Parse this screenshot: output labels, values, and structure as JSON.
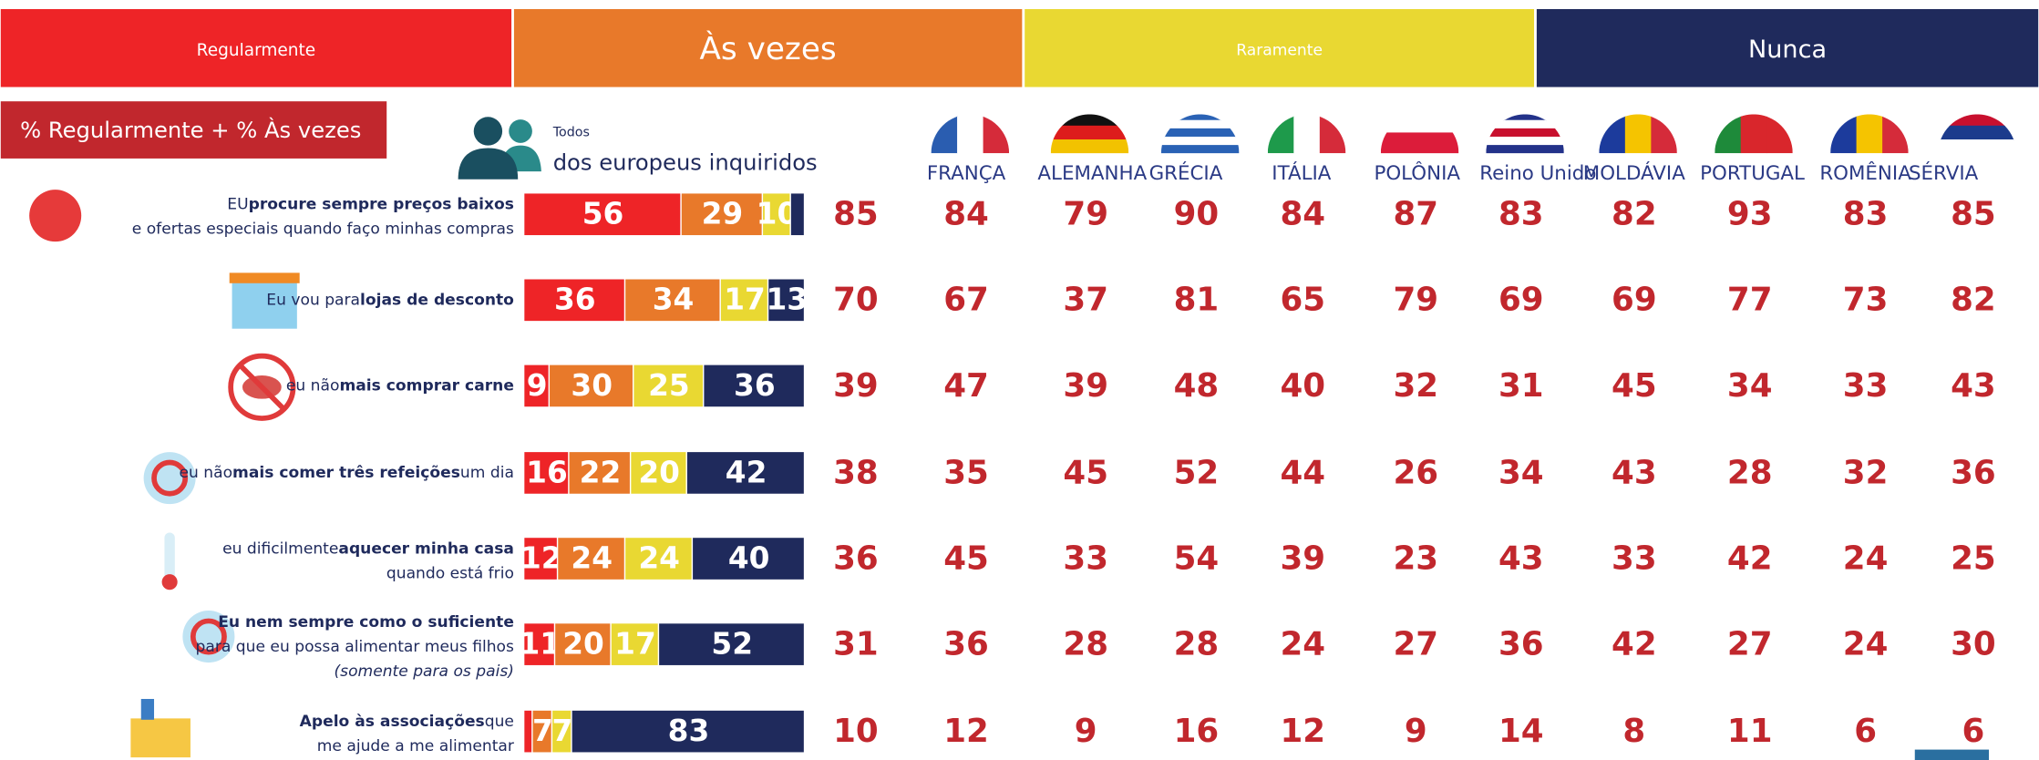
{
  "chart_data": {
    "type": "bar",
    "stacked": true,
    "orientation": "horizontal",
    "xlim": [
      0,
      100
    ],
    "badge": "% Regularmente + % Às vezes",
    "series": [
      {
        "name": "Regularmente",
        "color": "#ee2427",
        "values": [
          56,
          36,
          9,
          16,
          12,
          11,
          3
        ]
      },
      {
        "name": "Às vezes",
        "color": "#e8792a",
        "values": [
          29,
          34,
          30,
          22,
          24,
          20,
          7
        ]
      },
      {
        "name": "Raramente",
        "color": "#e9d832",
        "values": [
          10,
          17,
          25,
          20,
          24,
          17,
          7
        ]
      },
      {
        "name": "Nunca",
        "color": "#1f2a5c",
        "values": [
          5,
          13,
          36,
          42,
          40,
          52,
          83
        ]
      }
    ],
    "categories": [
      {
        "lines": [
          {
            "parts": [
              {
                "text": "EU"
              },
              {
                "text": "procure sempre preços baixos",
                "bold": true
              }
            ]
          },
          {
            "parts": [
              {
                "text": "e ofertas especiais quando faço minhas compras"
              }
            ]
          }
        ]
      },
      {
        "lines": [
          {
            "parts": [
              {
                "text": "Eu vou para"
              },
              {
                "text": "lojas de desconto",
                "bold": true
              }
            ]
          }
        ]
      },
      {
        "lines": [
          {
            "parts": [
              {
                "text": "eu não"
              },
              {
                "text": "mais comprar carne",
                "bold": true
              }
            ]
          }
        ]
      },
      {
        "lines": [
          {
            "parts": [
              {
                "text": "eu não"
              },
              {
                "text": "mais comer três refeições",
                "bold": true
              },
              {
                "text": "um dia"
              }
            ]
          }
        ]
      },
      {
        "lines": [
          {
            "parts": [
              {
                "text": "eu dificilmente"
              },
              {
                "text": "aquecer minha casa",
                "bold": true
              }
            ]
          },
          {
            "parts": [
              {
                "text": "quando está frio"
              }
            ]
          }
        ]
      },
      {
        "lines": [
          {
            "parts": [
              {
                "text": "Eu nem sempre como o suficiente",
                "bold": true
              }
            ]
          },
          {
            "style": "small",
            "parts": [
              {
                "text": "para que eu possa alimentar meus filhos"
              }
            ]
          },
          {
            "style": "note",
            "parts": [
              {
                "text": "(somente para os pais)",
                "italic": true
              }
            ]
          }
        ]
      },
      {
        "lines": [
          {
            "parts": [
              {
                "text": "Apelo às associações",
                "bold": true
              },
              {
                "text": "que"
              }
            ]
          },
          {
            "parts": [
              {
                "text": "me ajude a me alimentar"
              }
            ]
          }
        ]
      }
    ],
    "table": {
      "header_top": "Todos",
      "header": "dos europeus inquiridos",
      "totals": [
        85,
        70,
        39,
        38,
        36,
        31,
        10
      ],
      "countries": [
        {
          "name": "FRANÇA",
          "values": [
            84,
            67,
            47,
            35,
            45,
            36,
            12
          ]
        },
        {
          "name": "ALEMANHA",
          "values": [
            79,
            37,
            39,
            45,
            33,
            28,
            9
          ]
        },
        {
          "name": "GRÉCIA",
          "values": [
            90,
            81,
            48,
            52,
            54,
            28,
            16
          ]
        },
        {
          "name": "ITÁLIA",
          "values": [
            84,
            65,
            40,
            44,
            39,
            24,
            12
          ]
        },
        {
          "name": "POLÔNIA",
          "values": [
            87,
            79,
            32,
            26,
            23,
            27,
            9
          ]
        },
        {
          "name": "Reino Unido",
          "values": [
            83,
            69,
            31,
            34,
            43,
            36,
            14
          ]
        },
        {
          "name": "MOLDÁVIA",
          "values": [
            82,
            69,
            45,
            43,
            33,
            42,
            8
          ]
        },
        {
          "name": "PORTUGAL",
          "values": [
            93,
            77,
            34,
            28,
            42,
            27,
            11
          ]
        },
        {
          "name": "ROMÊNIA",
          "values": [
            83,
            73,
            33,
            32,
            24,
            24,
            6
          ]
        },
        {
          "name": "SÉRVIA",
          "values": [
            85,
            82,
            43,
            36,
            25,
            30,
            6
          ]
        }
      ]
    }
  }
}
